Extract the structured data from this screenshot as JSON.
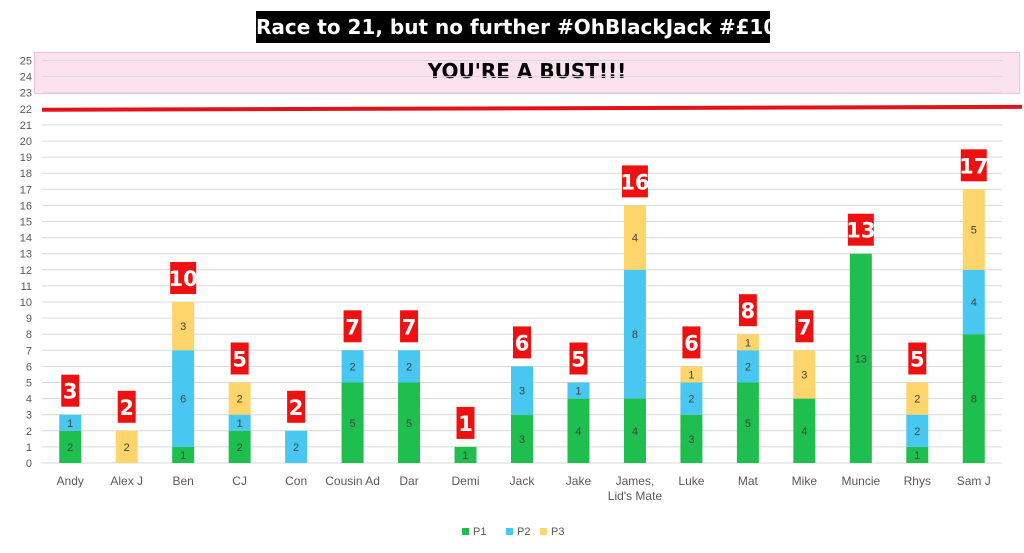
{
  "chart_data": {
    "type": "bar",
    "stacked": true,
    "title": "Race to 21, but no further #OhBlackJack #£10",
    "annotation": "YOU'RE A BUST!!!",
    "threshold": 22,
    "threshold_color": "#e8111b",
    "ylim": [
      0,
      25
    ],
    "yticks": [
      0,
      1,
      2,
      3,
      4,
      5,
      6,
      7,
      8,
      9,
      10,
      11,
      12,
      13,
      14,
      15,
      16,
      17,
      18,
      19,
      20,
      21,
      22,
      23,
      24,
      25
    ],
    "categories": [
      [
        "Andy"
      ],
      [
        "Alex J"
      ],
      [
        "Ben"
      ],
      [
        "CJ"
      ],
      [
        "Con"
      ],
      [
        "Cousin Ad"
      ],
      [
        "Dar"
      ],
      [
        "Demi"
      ],
      [
        "Jack"
      ],
      [
        "Jake"
      ],
      [
        "James,",
        "Lid's Mate"
      ],
      [
        "Luke"
      ],
      [
        "Mat"
      ],
      [
        "Mike"
      ],
      [
        "Muncie"
      ],
      [
        "Rhys"
      ],
      [
        "Sam J"
      ]
    ],
    "series": [
      {
        "name": "P1",
        "color": "#1fbf4f",
        "values": [
          2,
          0,
          1,
          2,
          0,
          5,
          5,
          1,
          3,
          4,
          4,
          3,
          5,
          4,
          13,
          1,
          8
        ]
      },
      {
        "name": "P2",
        "color": "#48c8f0",
        "values": [
          1,
          0,
          6,
          1,
          2,
          2,
          2,
          0,
          3,
          1,
          8,
          2,
          2,
          0,
          0,
          2,
          4
        ]
      },
      {
        "name": "P3",
        "color": "#fdd56a",
        "values": [
          0,
          2,
          3,
          2,
          0,
          0,
          0,
          0,
          0,
          0,
          4,
          1,
          1,
          3,
          0,
          2,
          5
        ]
      }
    ],
    "totals": [
      3,
      2,
      10,
      5,
      2,
      7,
      7,
      1,
      6,
      5,
      16,
      6,
      8,
      7,
      13,
      5,
      17
    ],
    "total_label_color": "#ee1111",
    "legend_position": "bottom",
    "grid": true
  }
}
